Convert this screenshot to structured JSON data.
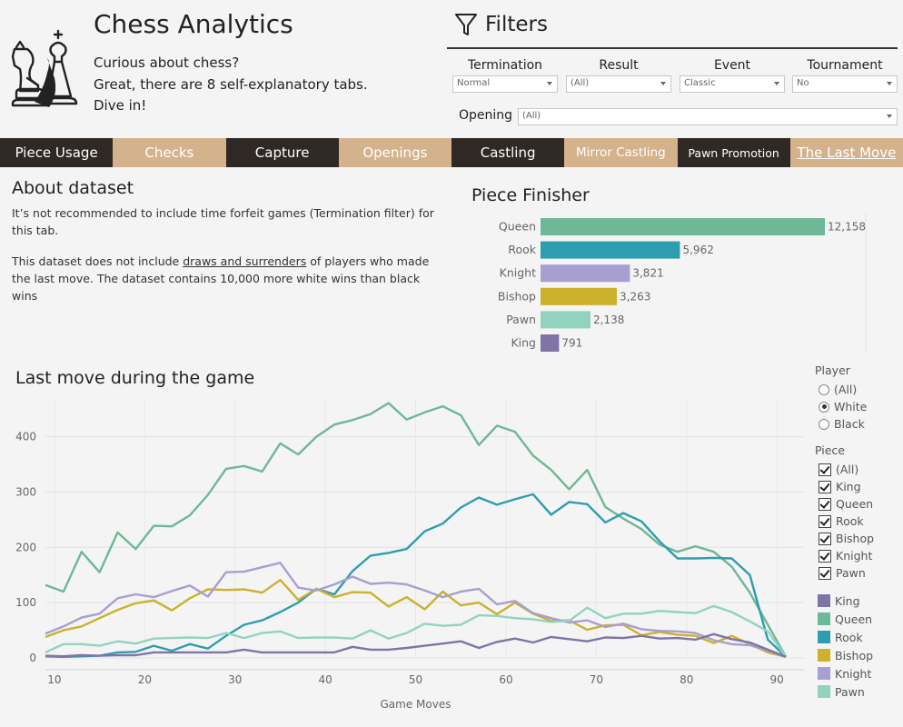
{
  "app": {
    "title": "Chess Analytics",
    "intro_lines": [
      "Curious about chess?",
      "Great, there are 8 self-explanatory tabs.",
      "Dive in!"
    ]
  },
  "filters": {
    "title": "Filters",
    "termination": {
      "label": "Termination",
      "value": "Normal"
    },
    "result": {
      "label": "Result",
      "value": "(All)"
    },
    "event": {
      "label": "Event",
      "value": "Classic"
    },
    "tournament": {
      "label": "Tournament",
      "value": "No"
    },
    "opening": {
      "label": "Opening",
      "value": "(All)"
    }
  },
  "tabs": [
    {
      "label": "Piece Usage",
      "style": "dark",
      "active": false
    },
    {
      "label": "Checks",
      "style": "light",
      "active": false
    },
    {
      "label": "Capture",
      "style": "dark",
      "active": false
    },
    {
      "label": "Openings",
      "style": "light",
      "active": false
    },
    {
      "label": "Castling",
      "style": "dark",
      "active": false
    },
    {
      "label": "Mirror Castling",
      "style": "light",
      "active": false
    },
    {
      "label": "Pawn Promotion",
      "style": "dark",
      "active": false
    },
    {
      "label": "The Last Move",
      "style": "light",
      "active": true
    }
  ],
  "about": {
    "title": "About dataset",
    "para1": "It’s not recommended to include time forfeit games (Termination filter) for this tab.",
    "para2_before": "This dataset does not include ",
    "para2_link": "draws and surrenders",
    "para2_after": " of players who made the last move. The dataset contains 10,000 more white wins than black wins"
  },
  "piece_panel": {
    "player_label": "Player",
    "player_options": [
      {
        "label": "(All)",
        "selected": false
      },
      {
        "label": "White",
        "selected": true
      },
      {
        "label": "Black",
        "selected": false
      }
    ],
    "piece_label": "Piece",
    "piece_options": [
      {
        "label": "(All)",
        "checked": true
      },
      {
        "label": "King",
        "checked": true
      },
      {
        "label": "Queen",
        "checked": true
      },
      {
        "label": "Rook",
        "checked": true
      },
      {
        "label": "Bishop",
        "checked": true
      },
      {
        "label": "Knight",
        "checked": true
      },
      {
        "label": "Pawn",
        "checked": true
      }
    ]
  },
  "colors": {
    "King": "#7f74a8",
    "Queen": "#6db896",
    "Rook": "#2f9db0",
    "Bishop": "#cdb02c",
    "Knight": "#a79fcf",
    "Pawn": "#92d3bf",
    "tab_dark": "#2f2824",
    "tab_light": "#d4b28c"
  },
  "chart_data": [
    {
      "type": "bar",
      "title": "Piece Finisher",
      "orientation": "horizontal",
      "categories": [
        "Queen",
        "Rook",
        "Knight",
        "Bishop",
        "Pawn",
        "King"
      ],
      "values": [
        12158,
        5962,
        3821,
        3263,
        2138,
        791
      ],
      "value_labels": [
        "12,158",
        "5,962",
        "3,821",
        "3,263",
        "2,138",
        "791"
      ],
      "xlim": [
        0,
        12158
      ]
    },
    {
      "type": "line",
      "title": "Last move during the game",
      "xlabel": "Game Moves",
      "ylabel": "",
      "xlim": [
        9,
        93
      ],
      "ylim": [
        0,
        470
      ],
      "xticks": [
        10,
        20,
        30,
        40,
        50,
        60,
        70,
        80,
        90
      ],
      "yticks": [
        0,
        100,
        200,
        300,
        400
      ],
      "grid": true,
      "legend": "right",
      "x": [
        9,
        11,
        13,
        15,
        17,
        19,
        21,
        23,
        25,
        27,
        29,
        31,
        33,
        35,
        37,
        39,
        41,
        43,
        45,
        47,
        49,
        51,
        53,
        55,
        57,
        59,
        61,
        63,
        65,
        67,
        69,
        71,
        73,
        75,
        77,
        79,
        81,
        83,
        85,
        87,
        89,
        91
      ],
      "series": [
        {
          "name": "Queen",
          "values": [
            132,
            120,
            192,
            155,
            227,
            197,
            239,
            238,
            258,
            295,
            342,
            347,
            337,
            388,
            368,
            400,
            422,
            430,
            441,
            461,
            431,
            444,
            455,
            439,
            385,
            420,
            409,
            366,
            340,
            305,
            340,
            273,
            252,
            233,
            205,
            192,
            202,
            192,
            165,
            118,
            60,
            2
          ]
        },
        {
          "name": "Rook",
          "values": [
            3,
            2,
            3,
            4,
            10,
            11,
            22,
            13,
            25,
            17,
            40,
            60,
            68,
            83,
            100,
            125,
            115,
            157,
            185,
            190,
            197,
            229,
            243,
            272,
            290,
            277,
            287,
            296,
            259,
            282,
            278,
            245,
            262,
            247,
            211,
            180,
            180,
            181,
            180,
            150,
            33,
            2
          ]
        },
        {
          "name": "Bishop",
          "values": [
            38,
            50,
            57,
            72,
            87,
            99,
            104,
            86,
            108,
            124,
            123,
            124,
            118,
            141,
            105,
            125,
            110,
            119,
            118,
            93,
            110,
            88,
            120,
            95,
            100,
            79,
            100,
            80,
            67,
            68,
            51,
            59,
            60,
            41,
            47,
            42,
            40,
            27,
            40,
            25,
            10,
            2
          ]
        },
        {
          "name": "Knight",
          "values": [
            44,
            57,
            73,
            80,
            108,
            115,
            110,
            121,
            131,
            111,
            155,
            156,
            164,
            172,
            127,
            122,
            133,
            147,
            134,
            136,
            133,
            122,
            110,
            120,
            125,
            97,
            103,
            81,
            72,
            64,
            68,
            56,
            62,
            52,
            49,
            48,
            45,
            32,
            25,
            23,
            13,
            2
          ]
        },
        {
          "name": "Pawn",
          "values": [
            10,
            25,
            25,
            22,
            30,
            26,
            35,
            36,
            37,
            36,
            45,
            36,
            45,
            48,
            36,
            37,
            37,
            35,
            50,
            35,
            45,
            62,
            58,
            60,
            77,
            76,
            72,
            70,
            65,
            67,
            91,
            72,
            80,
            80,
            85,
            83,
            81,
            94,
            83,
            66,
            48,
            2
          ]
        },
        {
          "name": "King",
          "values": [
            4,
            3,
            5,
            4,
            5,
            5,
            10,
            10,
            10,
            10,
            10,
            15,
            10,
            10,
            10,
            10,
            10,
            20,
            15,
            15,
            18,
            22,
            26,
            30,
            18,
            29,
            35,
            28,
            38,
            34,
            30,
            37,
            36,
            40,
            35,
            36,
            33,
            43,
            34,
            28,
            15,
            2
          ]
        }
      ]
    }
  ]
}
